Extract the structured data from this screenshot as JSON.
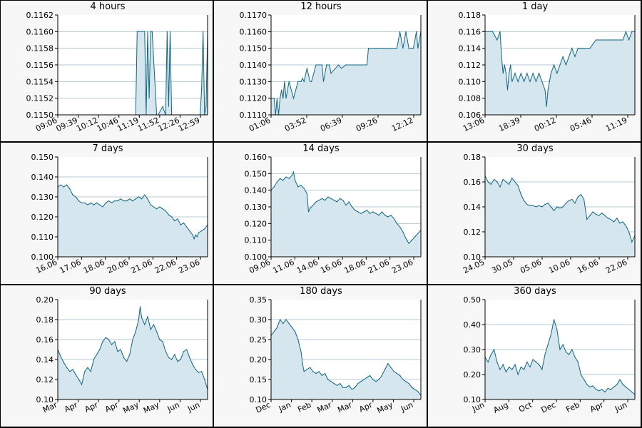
{
  "style": {
    "fill": "#d6e6ee",
    "line": "#0d6683",
    "grid": "#b7c9d3",
    "axis": "#000000",
    "panel_bg": "#f7f7f7"
  },
  "chart_data": [
    {
      "type": "line",
      "title": "4 hours",
      "ylim": [
        0.115,
        0.1162
      ],
      "yticks": [
        "0.1162",
        "0.1160",
        "0.1158",
        "0.1156",
        "0.1154",
        "0.1152",
        "0.1150"
      ],
      "xticks": [
        "09:06",
        "09:39",
        "10:12",
        "10:46",
        "11:19",
        "11:52",
        "12:26",
        "12:59"
      ],
      "x": [
        0,
        0.52,
        0.53,
        0.58,
        0.59,
        0.6,
        0.61,
        0.62,
        0.63,
        0.66,
        0.67,
        0.7,
        0.72,
        0.73,
        0.74,
        0.75,
        0.76,
        0.94,
        0.95,
        0.96,
        0.97,
        0.98,
        0.99,
        1.0
      ],
      "y": [
        0.115,
        0.115,
        0.116,
        0.116,
        0.115,
        0.116,
        0.1152,
        0.116,
        0.116,
        0.115,
        0.115,
        0.1151,
        0.115,
        0.116,
        0.1151,
        0.116,
        0.115,
        0.115,
        0.115,
        0.1153,
        0.116,
        0.115,
        0.1151,
        0.116
      ]
    },
    {
      "type": "line",
      "title": "12 hours",
      "ylim": [
        0.111,
        0.117
      ],
      "yticks": [
        "0.1170",
        "0.1160",
        "0.1150",
        "0.1140",
        "0.1130",
        "0.1120",
        "0.1110"
      ],
      "xticks": [
        "01:06",
        "03:52",
        "06:39",
        "09:26",
        "12:12"
      ],
      "x": [
        0,
        0.02,
        0.03,
        0.04,
        0.05,
        0.06,
        0.07,
        0.08,
        0.09,
        0.1,
        0.12,
        0.15,
        0.18,
        0.2,
        0.21,
        0.22,
        0.24,
        0.26,
        0.27,
        0.3,
        0.34,
        0.35,
        0.37,
        0.39,
        0.4,
        0.45,
        0.47,
        0.5,
        0.55,
        0.6,
        0.64,
        0.65,
        0.7,
        0.75,
        0.8,
        0.84,
        0.86,
        0.88,
        0.9,
        0.92,
        0.95,
        0.97,
        0.98,
        1.0
      ],
      "y": [
        0.112,
        0.112,
        0.111,
        0.112,
        0.111,
        0.112,
        0.1125,
        0.112,
        0.113,
        0.112,
        0.113,
        0.112,
        0.113,
        0.113,
        0.1132,
        0.113,
        0.1138,
        0.113,
        0.113,
        0.114,
        0.114,
        0.113,
        0.114,
        0.114,
        0.1135,
        0.114,
        0.1138,
        0.114,
        0.114,
        0.114,
        0.114,
        0.115,
        0.115,
        0.115,
        0.115,
        0.115,
        0.116,
        0.115,
        0.116,
        0.115,
        0.115,
        0.116,
        0.115,
        0.116
      ]
    },
    {
      "type": "line",
      "title": "1 day",
      "ylim": [
        0.106,
        0.118
      ],
      "yticks": [
        "0.118",
        "0.116",
        "0.114",
        "0.112",
        "0.110",
        "0.108",
        "0.106"
      ],
      "xticks": [
        "13:06",
        "18:39",
        "00:12",
        "05:46",
        "11:19"
      ],
      "x": [
        0,
        0.02,
        0.05,
        0.08,
        0.1,
        0.11,
        0.12,
        0.13,
        0.14,
        0.15,
        0.16,
        0.17,
        0.18,
        0.2,
        0.22,
        0.24,
        0.26,
        0.28,
        0.3,
        0.32,
        0.34,
        0.36,
        0.38,
        0.4,
        0.41,
        0.42,
        0.43,
        0.44,
        0.46,
        0.48,
        0.5,
        0.52,
        0.54,
        0.56,
        0.58,
        0.6,
        0.62,
        0.64,
        0.66,
        0.7,
        0.74,
        0.78,
        0.82,
        0.86,
        0.9,
        0.92,
        0.94,
        0.96,
        0.98,
        1.0
      ],
      "y": [
        0.116,
        0.116,
        0.116,
        0.115,
        0.116,
        0.113,
        0.111,
        0.112,
        0.111,
        0.109,
        0.111,
        0.112,
        0.11,
        0.111,
        0.11,
        0.111,
        0.11,
        0.111,
        0.11,
        0.111,
        0.11,
        0.111,
        0.11,
        0.109,
        0.107,
        0.109,
        0.11,
        0.111,
        0.112,
        0.111,
        0.112,
        0.113,
        0.112,
        0.113,
        0.114,
        0.113,
        0.114,
        0.114,
        0.114,
        0.114,
        0.115,
        0.115,
        0.115,
        0.115,
        0.115,
        0.115,
        0.116,
        0.115,
        0.116,
        0.116
      ]
    },
    {
      "type": "line",
      "title": "7 days",
      "ylim": [
        0.1,
        0.15
      ],
      "yticks": [
        "0.150",
        "0.140",
        "0.130",
        "0.120",
        "0.110",
        "0.100"
      ],
      "xticks": [
        "16.06",
        "17.06",
        "18.06",
        "20.06",
        "21.06",
        "22.06",
        "23.06"
      ],
      "x": [
        0,
        0.02,
        0.04,
        0.06,
        0.08,
        0.1,
        0.12,
        0.14,
        0.16,
        0.18,
        0.2,
        0.22,
        0.24,
        0.26,
        0.28,
        0.3,
        0.32,
        0.34,
        0.36,
        0.38,
        0.4,
        0.42,
        0.44,
        0.46,
        0.48,
        0.5,
        0.52,
        0.54,
        0.56,
        0.58,
        0.6,
        0.62,
        0.64,
        0.66,
        0.68,
        0.7,
        0.72,
        0.74,
        0.76,
        0.78,
        0.8,
        0.82,
        0.84,
        0.86,
        0.88,
        0.9,
        0.91,
        0.92,
        0.93,
        0.94,
        0.96,
        0.98,
        1.0
      ],
      "y": [
        0.135,
        0.136,
        0.135,
        0.136,
        0.134,
        0.131,
        0.13,
        0.128,
        0.127,
        0.127,
        0.126,
        0.127,
        0.126,
        0.127,
        0.126,
        0.125,
        0.127,
        0.128,
        0.127,
        0.128,
        0.128,
        0.129,
        0.128,
        0.128,
        0.129,
        0.128,
        0.129,
        0.13,
        0.129,
        0.131,
        0.129,
        0.126,
        0.125,
        0.124,
        0.125,
        0.124,
        0.123,
        0.121,
        0.12,
        0.118,
        0.119,
        0.116,
        0.117,
        0.115,
        0.113,
        0.111,
        0.109,
        0.111,
        0.11,
        0.112,
        0.113,
        0.114,
        0.116
      ]
    },
    {
      "type": "line",
      "title": "14 days",
      "ylim": [
        0.1,
        0.16
      ],
      "yticks": [
        "0.160",
        "0.150",
        "0.140",
        "0.130",
        "0.120",
        "0.110",
        "0.100"
      ],
      "xticks": [
        "09.06",
        "11.06",
        "14.06",
        "16.06",
        "18.06",
        "21.06",
        "23.06"
      ],
      "x": [
        0,
        0.02,
        0.04,
        0.06,
        0.08,
        0.1,
        0.12,
        0.14,
        0.15,
        0.16,
        0.18,
        0.2,
        0.22,
        0.24,
        0.25,
        0.26,
        0.28,
        0.3,
        0.32,
        0.34,
        0.36,
        0.38,
        0.4,
        0.42,
        0.44,
        0.46,
        0.48,
        0.5,
        0.52,
        0.54,
        0.56,
        0.58,
        0.6,
        0.62,
        0.64,
        0.66,
        0.68,
        0.7,
        0.72,
        0.74,
        0.76,
        0.78,
        0.8,
        0.82,
        0.84,
        0.86,
        0.88,
        0.9,
        0.92,
        0.94,
        0.96,
        0.98,
        1.0
      ],
      "y": [
        0.14,
        0.142,
        0.145,
        0.147,
        0.146,
        0.148,
        0.147,
        0.149,
        0.151,
        0.146,
        0.142,
        0.143,
        0.141,
        0.138,
        0.127,
        0.129,
        0.131,
        0.133,
        0.134,
        0.135,
        0.134,
        0.136,
        0.135,
        0.134,
        0.133,
        0.135,
        0.134,
        0.131,
        0.133,
        0.13,
        0.128,
        0.127,
        0.126,
        0.127,
        0.128,
        0.126,
        0.127,
        0.126,
        0.125,
        0.127,
        0.125,
        0.124,
        0.125,
        0.123,
        0.12,
        0.118,
        0.115,
        0.111,
        0.108,
        0.11,
        0.112,
        0.114,
        0.116
      ]
    },
    {
      "type": "line",
      "title": "30 days",
      "ylim": [
        0.1,
        0.18
      ],
      "yticks": [
        "0.18",
        "0.16",
        "0.14",
        "0.12",
        "0.10"
      ],
      "xticks": [
        "24.05",
        "30.05",
        "05.06",
        "10.06",
        "16.06",
        "22.06"
      ],
      "x": [
        0,
        0.02,
        0.04,
        0.06,
        0.08,
        0.1,
        0.12,
        0.14,
        0.16,
        0.18,
        0.2,
        0.22,
        0.24,
        0.26,
        0.28,
        0.3,
        0.32,
        0.34,
        0.36,
        0.38,
        0.4,
        0.42,
        0.44,
        0.46,
        0.48,
        0.5,
        0.52,
        0.54,
        0.56,
        0.58,
        0.6,
        0.62,
        0.64,
        0.66,
        0.68,
        0.7,
        0.72,
        0.74,
        0.76,
        0.78,
        0.8,
        0.82,
        0.84,
        0.86,
        0.88,
        0.9,
        0.92,
        0.94,
        0.96,
        0.98,
        1.0
      ],
      "y": [
        0.165,
        0.16,
        0.158,
        0.162,
        0.16,
        0.156,
        0.162,
        0.16,
        0.158,
        0.163,
        0.16,
        0.157,
        0.15,
        0.145,
        0.142,
        0.141,
        0.141,
        0.14,
        0.141,
        0.14,
        0.142,
        0.143,
        0.14,
        0.137,
        0.14,
        0.139,
        0.14,
        0.143,
        0.145,
        0.146,
        0.143,
        0.148,
        0.15,
        0.146,
        0.13,
        0.133,
        0.136,
        0.134,
        0.133,
        0.135,
        0.133,
        0.131,
        0.13,
        0.128,
        0.131,
        0.127,
        0.128,
        0.125,
        0.12,
        0.112,
        0.117
      ]
    },
    {
      "type": "line",
      "title": "90 days",
      "ylim": [
        0.1,
        0.2
      ],
      "yticks": [
        "0.20",
        "0.18",
        "0.16",
        "0.14",
        "0.12",
        "0.10"
      ],
      "xticks": [
        "Mar",
        "Apr",
        "Apr",
        "Apr",
        "May",
        "May",
        "Jun",
        "Jun"
      ],
      "x": [
        0,
        0.02,
        0.04,
        0.06,
        0.08,
        0.1,
        0.12,
        0.14,
        0.16,
        0.18,
        0.2,
        0.22,
        0.24,
        0.26,
        0.28,
        0.3,
        0.32,
        0.34,
        0.36,
        0.38,
        0.4,
        0.42,
        0.44,
        0.46,
        0.48,
        0.5,
        0.52,
        0.54,
        0.55,
        0.56,
        0.58,
        0.6,
        0.62,
        0.64,
        0.66,
        0.68,
        0.7,
        0.72,
        0.74,
        0.76,
        0.78,
        0.8,
        0.82,
        0.84,
        0.86,
        0.88,
        0.9,
        0.92,
        0.94,
        0.96,
        0.98,
        1.0
      ],
      "y": [
        0.15,
        0.143,
        0.137,
        0.132,
        0.128,
        0.13,
        0.125,
        0.12,
        0.115,
        0.128,
        0.132,
        0.128,
        0.14,
        0.145,
        0.15,
        0.158,
        0.162,
        0.16,
        0.155,
        0.158,
        0.148,
        0.15,
        0.142,
        0.138,
        0.145,
        0.16,
        0.168,
        0.18,
        0.193,
        0.182,
        0.175,
        0.183,
        0.17,
        0.175,
        0.168,
        0.16,
        0.158,
        0.148,
        0.142,
        0.14,
        0.145,
        0.138,
        0.14,
        0.148,
        0.15,
        0.142,
        0.135,
        0.13,
        0.127,
        0.128,
        0.12,
        0.11
      ]
    },
    {
      "type": "line",
      "title": "180 days",
      "ylim": [
        0.1,
        0.35
      ],
      "yticks": [
        "0.35",
        "0.30",
        "0.25",
        "0.20",
        "0.15",
        "0.10"
      ],
      "xticks": [
        "Dec",
        "Jan",
        "Feb",
        "Mar",
        "Mar",
        "Apr",
        "May",
        "Jun"
      ],
      "x": [
        0,
        0.02,
        0.04,
        0.06,
        0.08,
        0.1,
        0.12,
        0.14,
        0.16,
        0.18,
        0.2,
        0.21,
        0.22,
        0.24,
        0.26,
        0.28,
        0.3,
        0.32,
        0.34,
        0.36,
        0.38,
        0.4,
        0.42,
        0.44,
        0.46,
        0.48,
        0.5,
        0.52,
        0.54,
        0.56,
        0.58,
        0.6,
        0.62,
        0.64,
        0.66,
        0.68,
        0.7,
        0.72,
        0.74,
        0.76,
        0.78,
        0.8,
        0.82,
        0.84,
        0.86,
        0.88,
        0.9,
        0.92,
        0.94,
        0.96,
        0.98,
        1.0
      ],
      "y": [
        0.26,
        0.27,
        0.28,
        0.3,
        0.29,
        0.3,
        0.29,
        0.28,
        0.27,
        0.25,
        0.22,
        0.19,
        0.17,
        0.175,
        0.18,
        0.17,
        0.165,
        0.17,
        0.16,
        0.165,
        0.15,
        0.145,
        0.14,
        0.135,
        0.14,
        0.13,
        0.13,
        0.135,
        0.125,
        0.13,
        0.14,
        0.145,
        0.15,
        0.155,
        0.16,
        0.15,
        0.145,
        0.15,
        0.16,
        0.175,
        0.19,
        0.18,
        0.17,
        0.165,
        0.16,
        0.15,
        0.145,
        0.14,
        0.13,
        0.125,
        0.12,
        0.11
      ]
    },
    {
      "type": "line",
      "title": "360 days",
      "ylim": [
        0.1,
        0.5
      ],
      "yticks": [
        "0.50",
        "0.40",
        "0.30",
        "0.20",
        "0.10"
      ],
      "xticks": [
        "Jun",
        "Aug",
        "Oct",
        "Dec",
        "Feb",
        "Apr",
        "Jun"
      ],
      "x": [
        0,
        0.02,
        0.04,
        0.06,
        0.08,
        0.1,
        0.12,
        0.14,
        0.16,
        0.18,
        0.2,
        0.22,
        0.24,
        0.26,
        0.28,
        0.3,
        0.32,
        0.34,
        0.36,
        0.38,
        0.4,
        0.42,
        0.44,
        0.46,
        0.48,
        0.5,
        0.52,
        0.54,
        0.56,
        0.58,
        0.6,
        0.62,
        0.64,
        0.66,
        0.68,
        0.7,
        0.72,
        0.74,
        0.76,
        0.78,
        0.8,
        0.82,
        0.84,
        0.86,
        0.88,
        0.9,
        0.92,
        0.94,
        0.96,
        0.98,
        1.0
      ],
      "y": [
        0.27,
        0.25,
        0.28,
        0.3,
        0.25,
        0.22,
        0.24,
        0.21,
        0.23,
        0.22,
        0.24,
        0.2,
        0.23,
        0.22,
        0.25,
        0.23,
        0.26,
        0.25,
        0.24,
        0.22,
        0.28,
        0.32,
        0.36,
        0.42,
        0.38,
        0.3,
        0.32,
        0.29,
        0.28,
        0.3,
        0.27,
        0.25,
        0.2,
        0.18,
        0.16,
        0.15,
        0.155,
        0.14,
        0.135,
        0.14,
        0.13,
        0.145,
        0.14,
        0.15,
        0.16,
        0.18,
        0.16,
        0.15,
        0.14,
        0.13,
        0.12
      ]
    }
  ]
}
